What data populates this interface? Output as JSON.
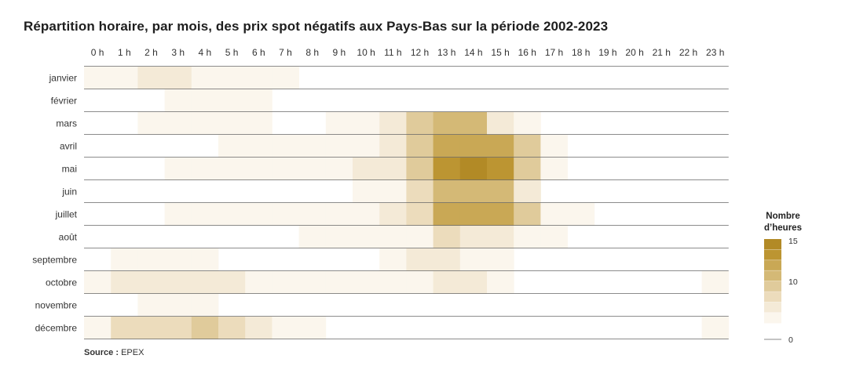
{
  "title": "Répartition horaire, par mois, des prix spot négatifs aux Pays-Bas sur la période 2002-2023",
  "source_label": "Source :",
  "source_value": "EPEX",
  "colors": {
    "scale": [
      "#ffffff",
      "#fbf6ed",
      "#f4ead7",
      "#ecdcbc",
      "#e0cb9b",
      "#d4b976",
      "#c9a855",
      "#bc9532",
      "#b28a26"
    ],
    "gridline": "#666666",
    "legend_line": "#888888"
  },
  "legend": {
    "title_line1": "Nombre",
    "title_line2": "d’heures",
    "ticks": [
      "15",
      "10",
      "0"
    ],
    "tick_values": [
      15,
      10,
      0
    ]
  },
  "chart_data": {
    "type": "heatmap",
    "title": "Répartition horaire, par mois, des prix spot négatifs aux Pays-Bas sur la période 2002-2023",
    "x_categories": [
      "0 h",
      "1 h",
      "2 h",
      "3 h",
      "4 h",
      "5 h",
      "6 h",
      "7 h",
      "8 h",
      "9 h",
      "10 h",
      "11 h",
      "12 h",
      "13 h",
      "14 h",
      "15 h",
      "16 h",
      "17 h",
      "18 h",
      "19 h",
      "20 h",
      "21 h",
      "22 h",
      "23 h"
    ],
    "y_categories": [
      "janvier",
      "février",
      "mars",
      "avril",
      "mai",
      "juin",
      "juillet",
      "août",
      "septembre",
      "octobre",
      "novembre",
      "décembre"
    ],
    "value_range": [
      0,
      15
    ],
    "values": [
      [
        1,
        2,
        3,
        3,
        2,
        1,
        2,
        1,
        0,
        0,
        0,
        0,
        0,
        0,
        0,
        0,
        0,
        0,
        0,
        0,
        0,
        0,
        0,
        0
      ],
      [
        0,
        0,
        0,
        1,
        2,
        1,
        1,
        0,
        0,
        0,
        0,
        0,
        0,
        0,
        0,
        0,
        0,
        0,
        0,
        0,
        0,
        0,
        0,
        0
      ],
      [
        0,
        0,
        1,
        1,
        1,
        1,
        1,
        0,
        0,
        1,
        2,
        3,
        7,
        9,
        9,
        4,
        2,
        0,
        0,
        0,
        0,
        0,
        0,
        0
      ],
      [
        0,
        0,
        0,
        0,
        0,
        1,
        1,
        1,
        1,
        1,
        2,
        3,
        7,
        11,
        12,
        11,
        7,
        1,
        0,
        0,
        0,
        0,
        0,
        0
      ],
      [
        0,
        0,
        0,
        1,
        1,
        1,
        1,
        1,
        1,
        1,
        3,
        4,
        8,
        14,
        15,
        14,
        8,
        2,
        0,
        0,
        0,
        0,
        0,
        0
      ],
      [
        0,
        0,
        0,
        0,
        0,
        0,
        0,
        0,
        0,
        0,
        1,
        2,
        5,
        9,
        9,
        10,
        3,
        0,
        0,
        0,
        0,
        0,
        0,
        0
      ],
      [
        0,
        0,
        0,
        1,
        2,
        2,
        2,
        2,
        2,
        2,
        2,
        3,
        6,
        11,
        12,
        11,
        7,
        2,
        1,
        0,
        0,
        0,
        0,
        0
      ],
      [
        0,
        0,
        0,
        0,
        0,
        0,
        0,
        0,
        1,
        1,
        1,
        1,
        2,
        5,
        3,
        3,
        2,
        1,
        0,
        0,
        0,
        0,
        0,
        0
      ],
      [
        0,
        1,
        1,
        1,
        1,
        0,
        0,
        0,
        0,
        0,
        0,
        1,
        3,
        3,
        2,
        2,
        0,
        0,
        0,
        0,
        0,
        0,
        0,
        0
      ],
      [
        1,
        3,
        3,
        3,
        3,
        3,
        1,
        1,
        1,
        1,
        1,
        2,
        2,
        3,
        3,
        1,
        0,
        0,
        0,
        0,
        0,
        0,
        0,
        1
      ],
      [
        0,
        0,
        1,
        1,
        1,
        0,
        0,
        0,
        0,
        0,
        0,
        0,
        0,
        0,
        0,
        0,
        0,
        0,
        0,
        0,
        0,
        0,
        0,
        0
      ],
      [
        2,
        5,
        5,
        6,
        7,
        5,
        3,
        2,
        1,
        0,
        0,
        0,
        0,
        0,
        0,
        0,
        0,
        0,
        0,
        0,
        0,
        0,
        0,
        1
      ]
    ]
  }
}
